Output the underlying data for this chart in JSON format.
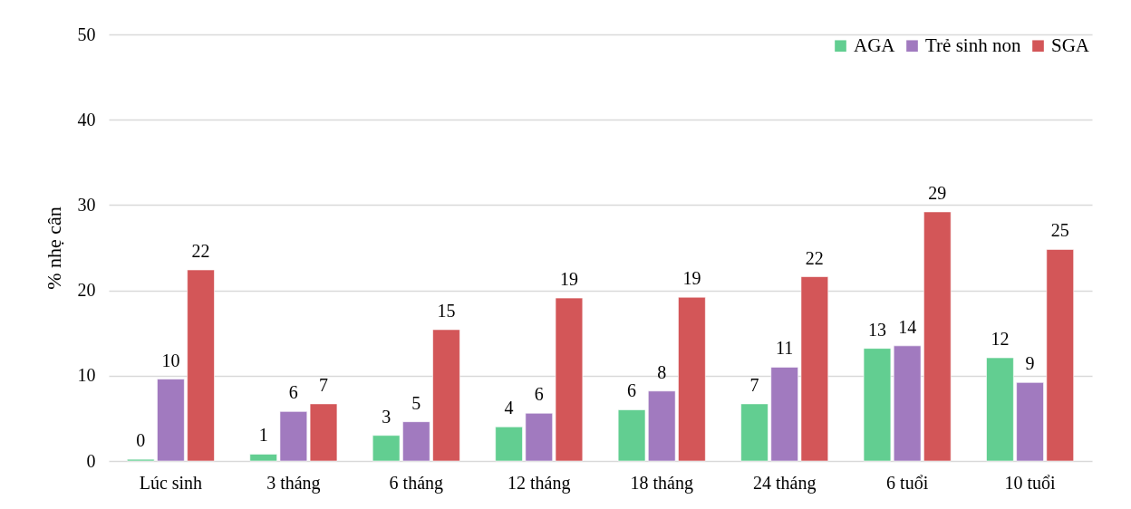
{
  "chart_data": {
    "type": "bar",
    "ylabel": "% nhẹ cân",
    "categories": [
      "Lúc sinh",
      "3 tháng",
      "6 tháng",
      "12 tháng",
      "18 tháng",
      "24 tháng",
      "6 tuổi",
      "10 tuổi"
    ],
    "series": [
      {
        "name": "AGA",
        "color": "#62ce91",
        "values": [
          0.2,
          0.8,
          3.0,
          4.0,
          6.0,
          6.7,
          13.2,
          12.1
        ],
        "value_labels": [
          "0",
          "1",
          "3",
          "4",
          "6",
          "7",
          "13",
          "12"
        ]
      },
      {
        "name": "Trẻ sinh non",
        "color": "#a17abf",
        "values": [
          9.6,
          5.8,
          4.6,
          5.6,
          8.2,
          11.0,
          13.5,
          9.2
        ],
        "value_labels": [
          "10",
          "6",
          "5",
          "6",
          "8",
          "11",
          "14",
          "9"
        ]
      },
      {
        "name": "SGA",
        "color": "#d35658",
        "values": [
          22.4,
          6.7,
          15.4,
          19.1,
          19.2,
          21.6,
          29.2,
          24.8
        ],
        "value_labels": [
          "22",
          "7",
          "15",
          "19",
          "19",
          "22",
          "29",
          "25"
        ]
      }
    ],
    "ylim": [
      0,
      50
    ],
    "yticks": [
      0,
      10,
      20,
      30,
      40,
      50
    ],
    "grid": "y",
    "legend": "top right"
  }
}
